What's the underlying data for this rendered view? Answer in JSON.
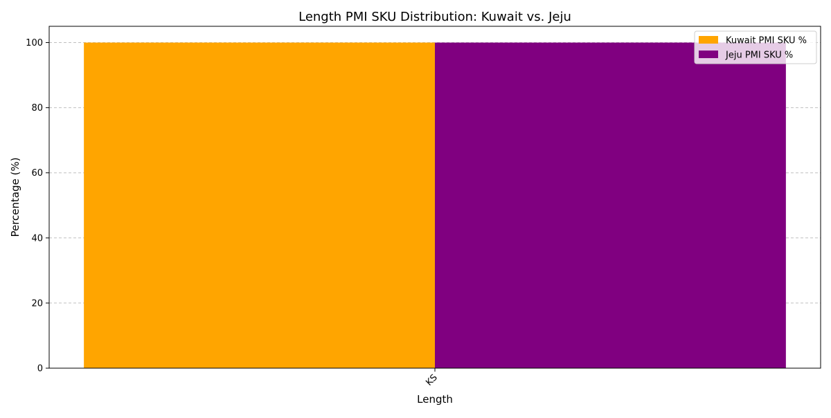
{
  "chart_data": {
    "type": "bar",
    "title": "Length PMI SKU Distribution: Kuwait vs. Jeju",
    "xlabel": "Length",
    "ylabel": "Percentage (%)",
    "categories": [
      "KS"
    ],
    "series": [
      {
        "name": "Kuwait PMI SKU %",
        "values": [
          100
        ],
        "color": "#FFA500"
      },
      {
        "name": "Jeju PMI SKU %",
        "values": [
          100
        ],
        "color": "#800080"
      }
    ],
    "ylim": [
      0,
      105
    ],
    "yticks": [
      0,
      20,
      40,
      60,
      80,
      100
    ],
    "grid": "y-dashed",
    "legend_position": "top-right"
  }
}
